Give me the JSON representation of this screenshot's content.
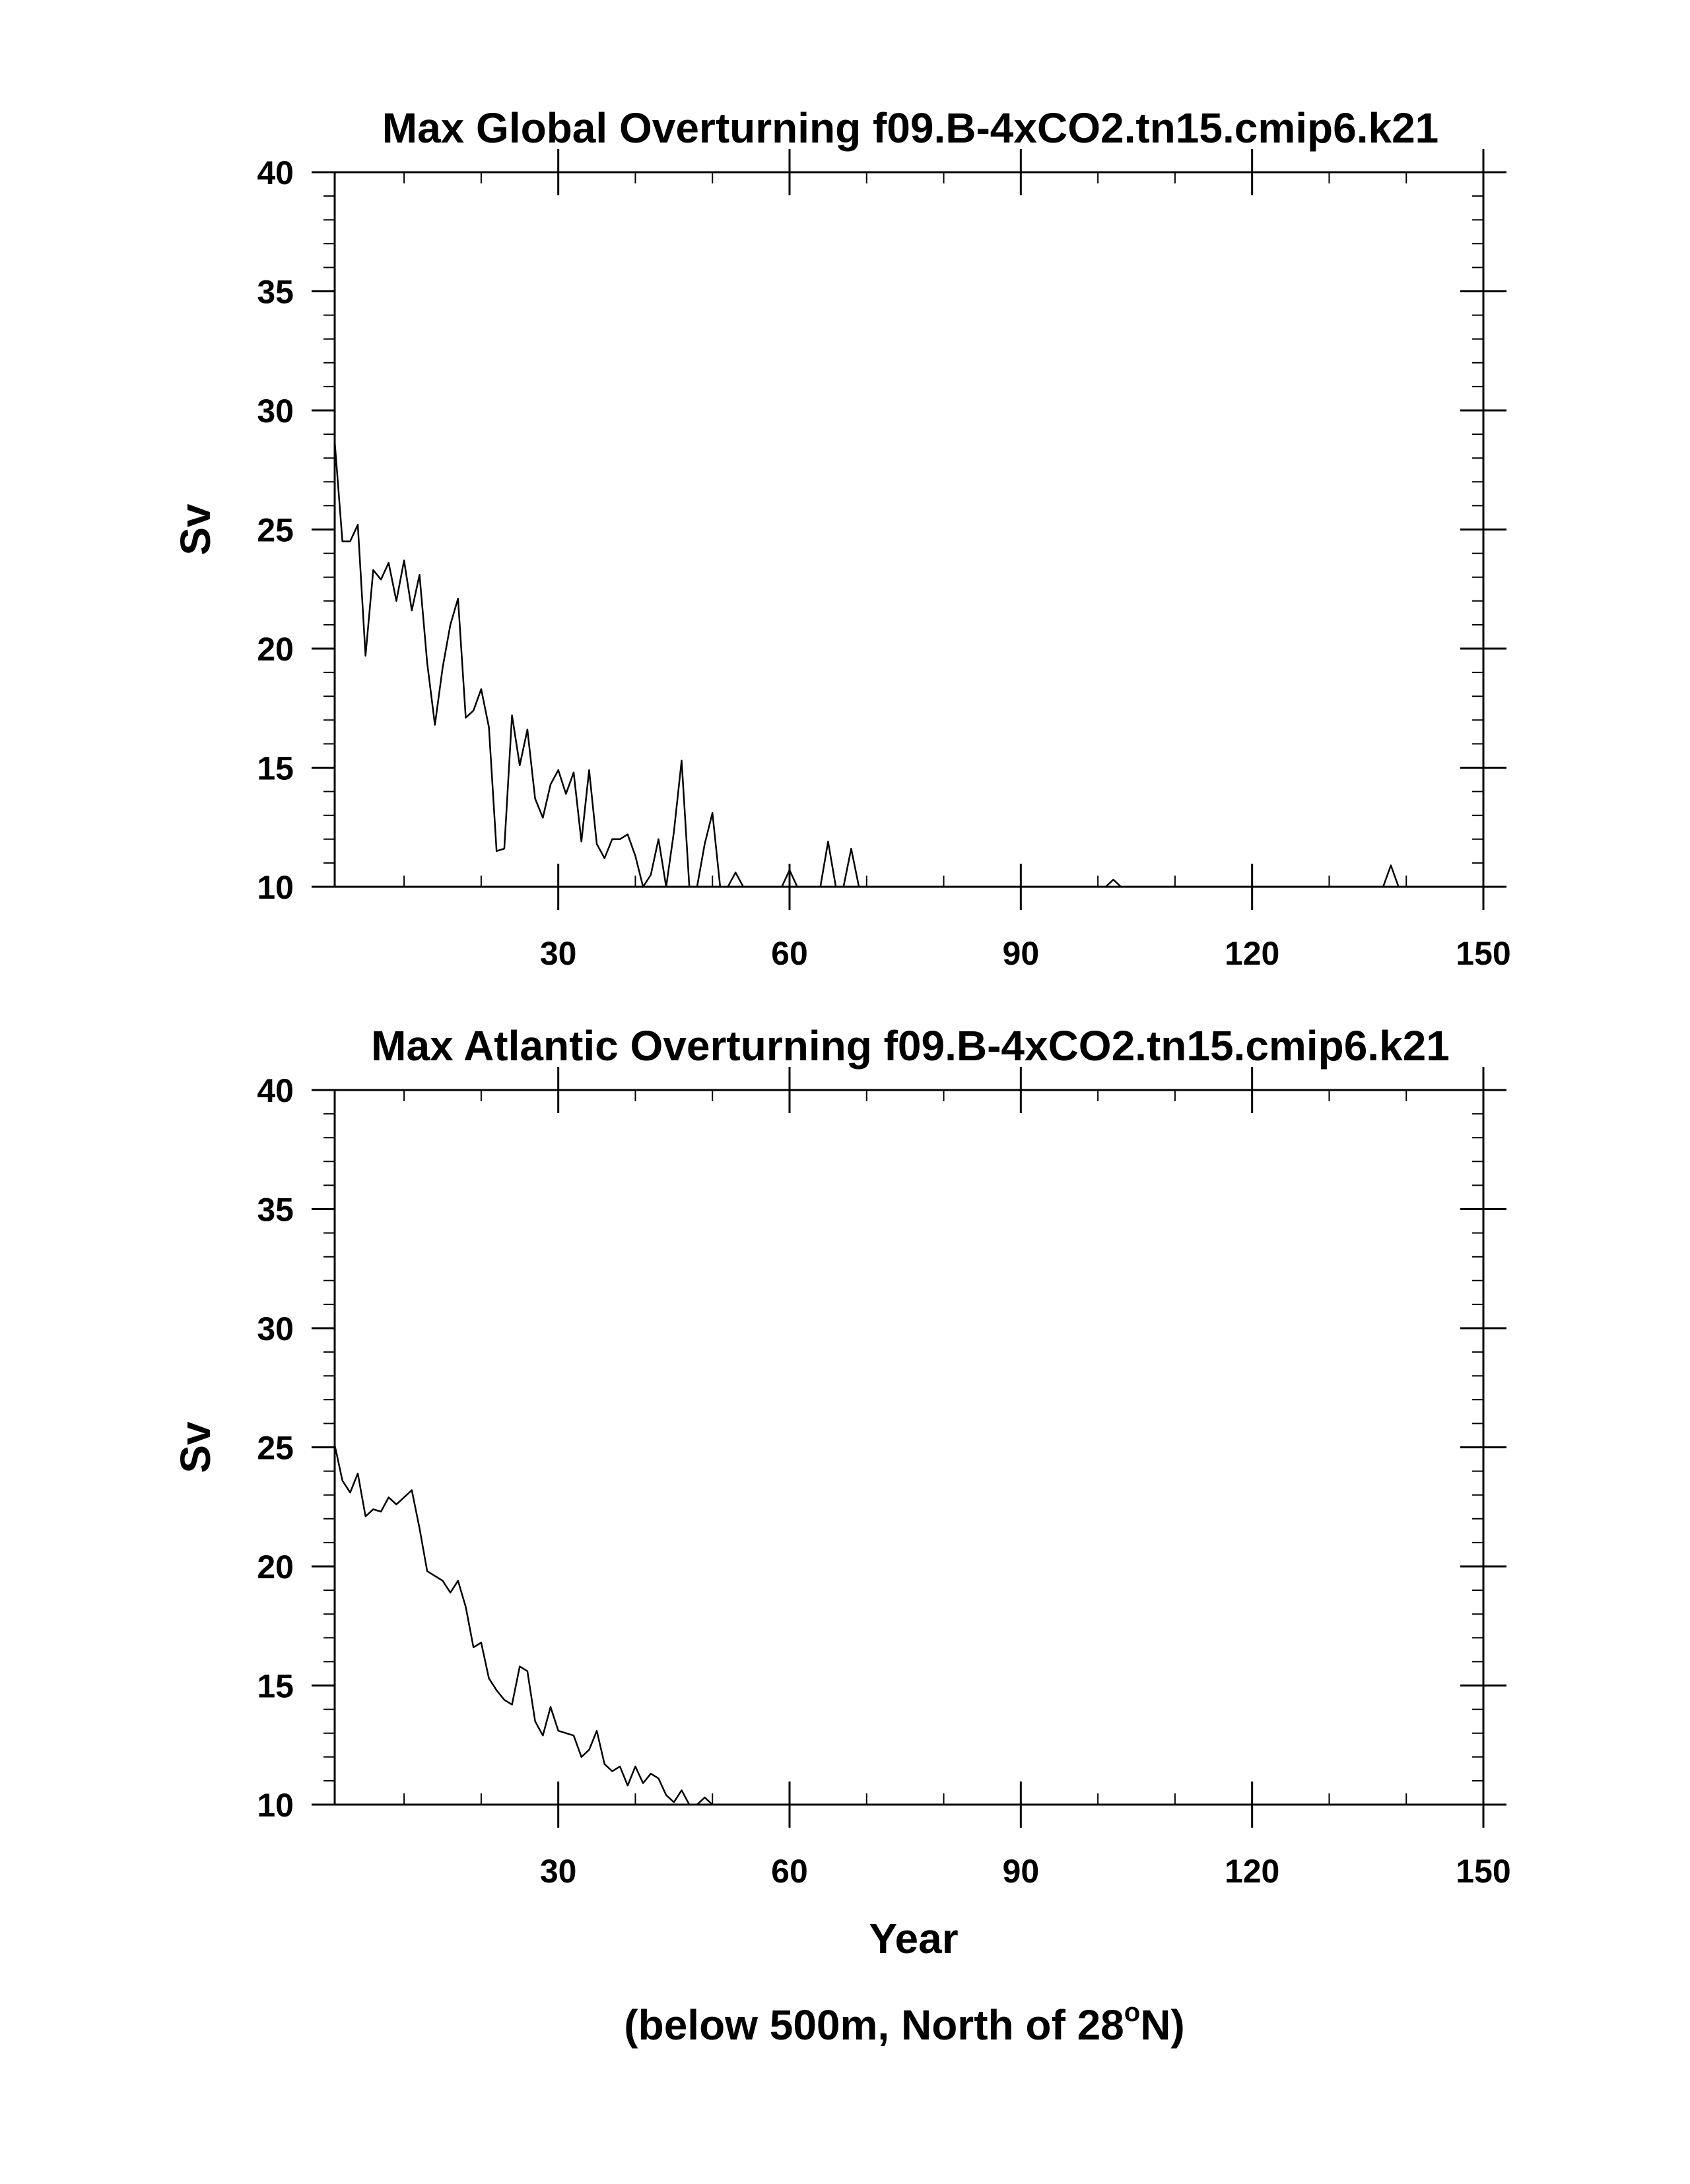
{
  "chart_data": [
    {
      "type": "line",
      "title": "Max Global Overturning f09.B-4xCO2.tn15.cmip6.k21",
      "xlabel": "",
      "ylabel": "Sv",
      "xlim": [
        1,
        150
      ],
      "ylim": [
        10,
        40
      ],
      "xticks": [
        30,
        60,
        90,
        120,
        150
      ],
      "yticks": [
        10,
        15,
        20,
        25,
        30,
        35,
        40
      ],
      "grid": false,
      "series": [
        {
          "x": [
            1,
            2,
            3,
            4,
            5,
            6,
            7,
            8,
            9,
            10,
            11,
            12,
            13,
            14,
            15,
            16,
            17,
            18,
            19,
            20,
            21,
            22,
            23,
            24,
            25,
            26,
            27,
            28,
            29,
            30,
            31,
            32,
            33,
            34,
            35,
            36,
            37,
            38,
            39,
            40,
            41,
            42,
            43,
            44,
            45,
            46,
            47,
            48,
            49,
            50,
            51,
            52,
            53,
            54,
            55,
            56,
            57,
            58,
            59,
            60,
            61,
            62,
            63,
            64,
            65,
            66,
            67,
            68,
            69,
            70,
            75,
            80,
            90,
            100,
            101,
            102,
            103,
            104,
            110,
            120,
            130,
            137,
            138,
            139,
            140,
            150
          ],
          "y": [
            28.7,
            24.5,
            24.5,
            25.2,
            19.7,
            23.3,
            22.9,
            23.6,
            22.0,
            23.7,
            21.6,
            23.1,
            19.4,
            16.8,
            19.2,
            21.0,
            22.1,
            17.1,
            17.4,
            18.3,
            16.7,
            11.5,
            11.6,
            17.2,
            15.1,
            16.6,
            13.7,
            12.9,
            14.3,
            14.9,
            13.9,
            14.8,
            11.9,
            14.9,
            11.8,
            11.2,
            12.0,
            12.0,
            12.2,
            11.3,
            10.0,
            10.5,
            12.0,
            10.0,
            12.3,
            15.3,
            10.0,
            10.0,
            11.8,
            13.1,
            10.0,
            10.0,
            10.6,
            10.0,
            10.0,
            10.0,
            10.0,
            10.0,
            10.0,
            10.7,
            10.0,
            10.0,
            10.0,
            10.0,
            11.9,
            10.0,
            10.0,
            11.6,
            10.0,
            10.0,
            10.0,
            10.0,
            10.0,
            10.0,
            10.0,
            10.3,
            10.0,
            10.0,
            10.0,
            10.0,
            10.0,
            10.0,
            10.9,
            10.0,
            10.0,
            10.0
          ]
        }
      ]
    },
    {
      "type": "line",
      "title": "Max Atlantic Overturning f09.B-4xCO2.tn15.cmip6.k21",
      "xlabel": "Year",
      "ylabel": "Sv",
      "xlim": [
        1,
        150
      ],
      "ylim": [
        10,
        40
      ],
      "xticks": [
        30,
        60,
        90,
        120,
        150
      ],
      "yticks": [
        10,
        15,
        20,
        25,
        30,
        35,
        40
      ],
      "grid": false,
      "series": [
        {
          "x": [
            1,
            2,
            3,
            4,
            5,
            6,
            7,
            8,
            9,
            10,
            11,
            12,
            13,
            14,
            15,
            16,
            17,
            18,
            19,
            20,
            21,
            22,
            23,
            24,
            25,
            26,
            27,
            28,
            29,
            30,
            31,
            32,
            33,
            34,
            35,
            36,
            37,
            38,
            39,
            40,
            41,
            42,
            43,
            44,
            45,
            46,
            47,
            48,
            49,
            50,
            60,
            90,
            120,
            150
          ],
          "y": [
            25.1,
            23.6,
            23.1,
            23.9,
            22.1,
            22.4,
            22.3,
            22.9,
            22.6,
            22.9,
            23.2,
            21.6,
            19.8,
            19.6,
            19.4,
            18.9,
            19.4,
            18.3,
            16.6,
            16.8,
            15.3,
            14.8,
            14.4,
            14.2,
            15.8,
            15.6,
            13.5,
            12.9,
            14.1,
            13.1,
            13.0,
            12.9,
            12.0,
            12.3,
            13.1,
            11.7,
            11.4,
            11.6,
            10.8,
            11.6,
            10.9,
            11.3,
            11.1,
            10.4,
            10.1,
            10.6,
            10.0,
            10.0,
            10.3,
            10.0,
            10.0,
            10.0,
            10.0,
            10.0
          ]
        }
      ]
    }
  ],
  "footnote": {
    "before": "(below 500m, North of 28",
    "superscript": "o",
    "after": "N)"
  }
}
